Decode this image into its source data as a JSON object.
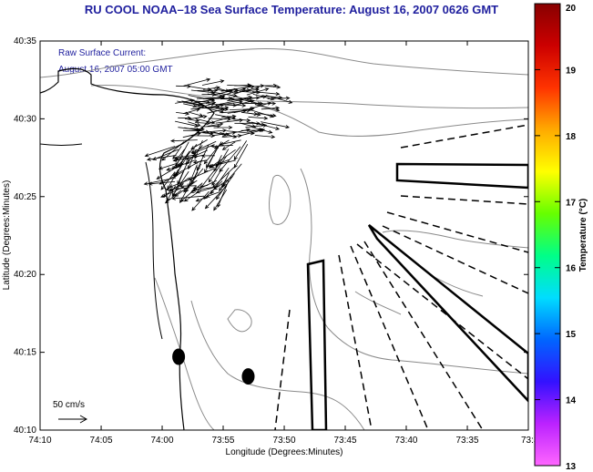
{
  "title": "RU COOL  NOAA–18  Sea Surface Temperature:  August 16, 2007 0626 GMT",
  "annotation": {
    "line1": "Raw Surface Current:",
    "line2": "August 16, 2007 05:00 GMT"
  },
  "scale_label": "50 cm/s",
  "chart_data": {
    "type": "map",
    "xlabel": "Longitude (Degrees:Minutes)",
    "ylabel": "Latitude (Degrees:Minutes)",
    "x_ticks": [
      {
        "value": -74.1667,
        "label": "74:10"
      },
      {
        "value": -74.0833,
        "label": "74:05"
      },
      {
        "value": -74.0,
        "label": "74:00"
      },
      {
        "value": -73.9167,
        "label": "73:55"
      },
      {
        "value": -73.8333,
        "label": "73:50"
      },
      {
        "value": -73.75,
        "label": "73:45"
      },
      {
        "value": -73.6667,
        "label": "73:40"
      },
      {
        "value": -73.5833,
        "label": "73:35"
      },
      {
        "value": -73.5,
        "label": "73:3"
      }
    ],
    "y_ticks": [
      {
        "value": 40.5833,
        "label": "40:35"
      },
      {
        "value": 40.5,
        "label": "40:30"
      },
      {
        "value": 40.4167,
        "label": "40:25"
      },
      {
        "value": 40.3333,
        "label": "40:20"
      },
      {
        "value": 40.25,
        "label": "40:15"
      },
      {
        "value": 40.1667,
        "label": "40:10"
      }
    ],
    "xlim": [
      -74.1667,
      -73.5
    ],
    "ylim": [
      40.1667,
      40.5833
    ],
    "colorbar": {
      "label": "Temperature (°C)",
      "range": [
        13,
        20
      ],
      "ticks": [
        "13",
        "14",
        "15",
        "16",
        "17",
        "18",
        "19",
        "20"
      ],
      "colors": [
        "#ff66ff",
        "#bb22ff",
        "#3311ff",
        "#0066ff",
        "#00ddff",
        "#00ff88",
        "#66ff00",
        "#ffff00",
        "#ffaa00",
        "#ff3300",
        "#cc0000",
        "#880000"
      ]
    },
    "markers": [
      {
        "lon": -73.9775,
        "lat": 40.2452
      },
      {
        "lon": -73.8825,
        "lat": 40.2242
      }
    ],
    "vector_region": {
      "lon_range": [
        -73.98,
        -73.85
      ],
      "lat_range": [
        40.415,
        40.535
      ]
    }
  }
}
